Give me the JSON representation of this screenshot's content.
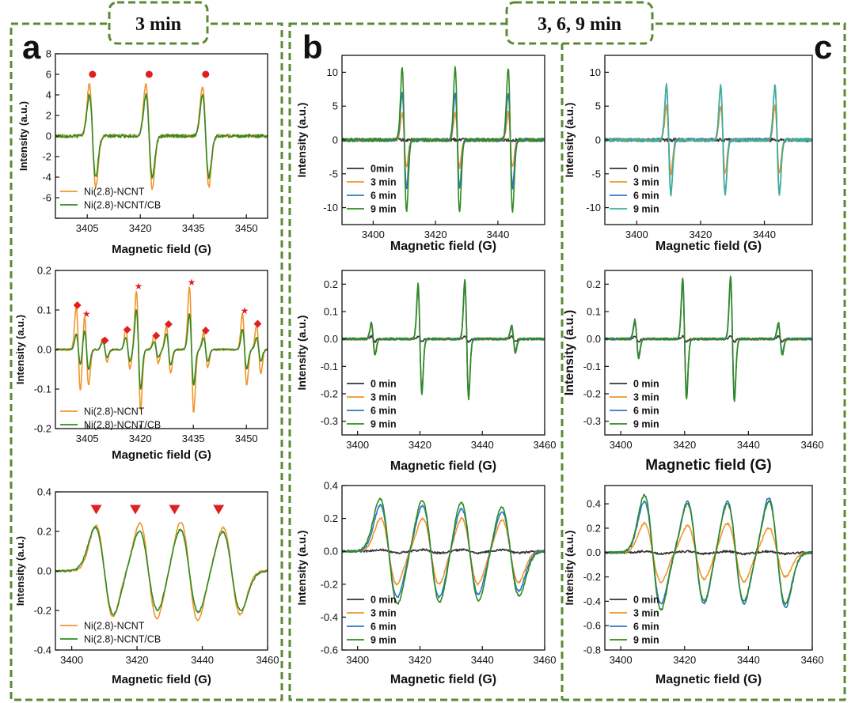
{
  "headers": {
    "left": "3 min",
    "right": "3, 6, 9 min"
  },
  "panel_letters": {
    "a": "a",
    "b": "b",
    "c": "c"
  },
  "colors": {
    "frame_green": "#5b8a35",
    "orange": "#f0962a",
    "green": "#2f8a22",
    "black": "#333333",
    "blue": "#2d78c7",
    "teal": "#3fb09a",
    "marker_red": "#e02020"
  },
  "chart_data": [
    {
      "id": "a1",
      "type": "line",
      "xlabel": "Magnetic field (G)",
      "ylabel": "Intensity (a.u.)",
      "xlim": [
        3396,
        3456
      ],
      "ylim": [
        -8,
        8
      ],
      "xticks": [
        3405,
        3420,
        3435,
        3450
      ],
      "yticks": [
        -8,
        -6,
        -4,
        -2,
        0,
        2,
        4,
        6,
        8
      ],
      "ytick_labels": [
        "",
        "-6",
        "-4",
        "-2",
        "0",
        "2",
        "4",
        "6",
        "8"
      ],
      "lines": [
        3406.5,
        3422.5,
        3438.5
      ],
      "peak_markers": {
        "shape": "circle",
        "y": 6,
        "x": [
          3406.5,
          3422.5,
          3438.5
        ]
      },
      "series": [
        {
          "name": "Ni(2.8)-NCNT",
          "color": "#f0962a",
          "amps": [
            5.0,
            5.1,
            4.9
          ],
          "width": 0.9,
          "noise": 0.02
        },
        {
          "name": "Ni(2.8)-NCNT/CB",
          "color": "#2f8a22",
          "amps": [
            4.0,
            4.0,
            4.0
          ],
          "width": 0.9,
          "noise": 0.02
        }
      ]
    },
    {
      "id": "a2",
      "type": "line",
      "xlabel": "Magnetic field (G)",
      "ylabel": "Intensity (a.u.)",
      "xlim": [
        3396,
        3456
      ],
      "ylim": [
        -0.2,
        0.2
      ],
      "xticks": [
        3405,
        3420,
        3435,
        3450
      ],
      "yticks": [
        -0.2,
        -0.1,
        0,
        0.1,
        0.2
      ],
      "ytick_labels": [
        "-0.2",
        "-0.1",
        "0.0",
        "0.1",
        "0.2"
      ],
      "lines": [
        3404.8,
        3419.5,
        3434.5,
        3449.5,
        3402.5,
        3410.0,
        3416.5,
        3424.5,
        3428.0,
        3438.5,
        3453.5
      ],
      "peak_markers_star": {
        "shape": "star",
        "points": [
          [
            3404.8,
            0.09
          ],
          [
            3419.5,
            0.16
          ],
          [
            3434.5,
            0.17
          ],
          [
            3449.5,
            0.098
          ]
        ]
      },
      "peak_markers_diamond": {
        "shape": "diamond",
        "points": [
          [
            3402.2,
            0.112
          ],
          [
            3410.0,
            0.023
          ],
          [
            3416.3,
            0.05
          ],
          [
            3424.5,
            0.035
          ],
          [
            3428.0,
            0.064
          ],
          [
            3438.5,
            0.048
          ],
          [
            3453.2,
            0.065
          ]
        ]
      },
      "series": [
        {
          "name": "Ni(2.8)-NCNT",
          "color": "#f0962a",
          "amps": [
            0.09,
            0.15,
            0.16,
            0.09,
            0.11,
            0.03,
            0.05,
            0.035,
            0.06,
            0.045,
            0.06
          ],
          "width": 0.6,
          "noise": 0.014
        },
        {
          "name": "Ni(2.8)-NCNT/CB",
          "color": "#2f8a22",
          "amps": [
            0.05,
            0.1,
            0.09,
            0.05,
            0.04,
            0.02,
            0.03,
            0.02,
            0.04,
            0.03,
            0.03
          ],
          "width": 0.6,
          "noise": 0.008
        }
      ]
    },
    {
      "id": "a3",
      "type": "line",
      "xlabel": "Magnetic field (G)",
      "ylabel": "Intensity (a.u.)",
      "xlim": [
        3395,
        3460
      ],
      "ylim": [
        -0.4,
        0.4
      ],
      "xticks": [
        3400,
        3420,
        3440,
        3460
      ],
      "yticks": [
        -0.4,
        -0.2,
        0,
        0.2,
        0.4
      ],
      "ytick_labels": [
        "-0.4",
        "-0.2",
        "0.0",
        "0.2",
        "0.4"
      ],
      "lines": [
        3410.0,
        3423.5,
        3436.0,
        3449.0
      ],
      "peak_markers": {
        "shape": "triangle",
        "y": 0.31,
        "x": [
          3407.5,
          3419.5,
          3431.5,
          3445.0
        ]
      },
      "series": [
        {
          "name": "Ni(2.8)-NCNT",
          "color": "#f0962a",
          "amps": [
            0.23,
            0.24,
            0.25,
            0.22
          ],
          "width": 2.6,
          "noise": 0.012
        },
        {
          "name": "Ni(2.8)-NCNT/CB",
          "color": "#2f8a22",
          "amps": [
            0.22,
            0.2,
            0.21,
            0.2
          ],
          "width": 2.8,
          "noise": 0.012
        }
      ]
    },
    {
      "id": "b1",
      "type": "line",
      "xlabel": "Magnetic field (G)",
      "ylabel": "Intensity (a.u.)",
      "xlim": [
        3390,
        3455
      ],
      "ylim": [
        -12.5,
        12.5
      ],
      "xticks": [
        3400,
        3420,
        3440
      ],
      "yticks": [
        -10,
        -5,
        0,
        5,
        10
      ],
      "ytick_labels": [
        "-10",
        "-5",
        "0",
        "5",
        "10"
      ],
      "lines": [
        3410.0,
        3427.0,
        3444.0
      ],
      "series": [
        {
          "name": "0min",
          "color": "#333333",
          "amps": [
            0.02,
            0.02,
            0.02
          ],
          "width": 0.7,
          "noise": 0.02
        },
        {
          "name": "3 min",
          "color": "#f0962a",
          "amps": [
            4.0,
            4.0,
            4.0
          ],
          "width": 0.7,
          "noise": 0.02
        },
        {
          "name": "6 min",
          "color": "#2d78c7",
          "amps": [
            7.0,
            7.0,
            7.0
          ],
          "width": 0.7,
          "noise": 0.02
        },
        {
          "name": "9 min",
          "color": "#2f8a22",
          "amps": [
            10.6,
            10.6,
            10.6
          ],
          "width": 0.7,
          "noise": 0.02
        }
      ]
    },
    {
      "id": "b2",
      "type": "line",
      "xlabel": "Magnetic field (G)",
      "ylabel": "Intensity (a.u.)",
      "xlim": [
        3395,
        3460
      ],
      "ylim": [
        -0.35,
        0.25
      ],
      "xticks": [
        3400,
        3420,
        3440,
        3460
      ],
      "yticks": [
        -0.3,
        -0.2,
        -0.1,
        0,
        0.1,
        0.2
      ],
      "ytick_labels": [
        "-0.3",
        "-0.2",
        "-0.1",
        "0.0",
        "0.1",
        "0.2"
      ],
      "lines": [
        3405.0,
        3420.0,
        3435.0,
        3450.0
      ],
      "series": [
        {
          "name": "0 min",
          "color": "#333333",
          "amps": [
            0.01,
            0.01,
            0.01,
            0.01
          ],
          "width": 0.6,
          "noise": 0.01
        },
        {
          "name": "3 min",
          "color": "#f0962a",
          "amps": [
            0.05,
            0.18,
            0.2,
            0.04
          ],
          "width": 0.6,
          "noise": 0.014
        },
        {
          "name": "6 min",
          "color": "#2d78c7",
          "amps": [
            0.06,
            0.19,
            0.21,
            0.045
          ],
          "width": 0.6,
          "noise": 0.014
        },
        {
          "name": "9 min",
          "color": "#2f8a22",
          "amps": [
            0.06,
            0.2,
            0.22,
            0.05
          ],
          "width": 0.6,
          "noise": 0.014
        }
      ]
    },
    {
      "id": "b3",
      "type": "line",
      "xlabel": "Magnetic field (G)",
      "ylabel": "Intensity (a.u.)",
      "xlim": [
        3395,
        3460
      ],
      "ylim": [
        -0.6,
        0.4
      ],
      "xticks": [
        3400,
        3420,
        3440,
        3460
      ],
      "yticks": [
        -0.6,
        -0.4,
        -0.2,
        0,
        0.2,
        0.4
      ],
      "ytick_labels": [
        "-0.6",
        "-0.4",
        "-0.2",
        "0.0",
        "0.2",
        "0.4"
      ],
      "lines": [
        3410.0,
        3423.5,
        3436.0,
        3449.0
      ],
      "series": [
        {
          "name": "0 min",
          "color": "#333333",
          "amps": [
            0.01,
            0.01,
            0.01,
            0.01
          ],
          "width": 2.6,
          "noise": 0.012
        },
        {
          "name": "3 min",
          "color": "#f0962a",
          "amps": [
            0.2,
            0.2,
            0.2,
            0.19
          ],
          "width": 2.6,
          "noise": 0.012
        },
        {
          "name": "6 min",
          "color": "#2d78c7",
          "amps": [
            0.28,
            0.28,
            0.26,
            0.24
          ],
          "width": 2.7,
          "noise": 0.012
        },
        {
          "name": "9 min",
          "color": "#2f8a22",
          "amps": [
            0.32,
            0.31,
            0.3,
            0.27
          ],
          "width": 2.8,
          "noise": 0.012
        }
      ]
    },
    {
      "id": "c1",
      "type": "line",
      "xlabel": "Magnetic field (G)",
      "ylabel": "Intensity (a.u.)",
      "xlim": [
        3390,
        3455
      ],
      "ylim": [
        -12.5,
        12.5
      ],
      "xticks": [
        3400,
        3420,
        3440
      ],
      "yticks": [
        -10,
        -5,
        0,
        5,
        10
      ],
      "ytick_labels": [
        "-10",
        "-5",
        "0",
        "5",
        "10"
      ],
      "lines": [
        3410.0,
        3427.0,
        3444.0
      ],
      "series": [
        {
          "name": "0 min",
          "color": "#333333",
          "amps": [
            0.02,
            0.02,
            0.02
          ],
          "width": 0.7,
          "noise": 0.02
        },
        {
          "name": "3 min",
          "color": "#f0962a",
          "amps": [
            5.0,
            5.0,
            5.0
          ],
          "width": 0.7,
          "noise": 0.02
        },
        {
          "name": "6 min",
          "color": "#2d78c7",
          "amps": [
            7.9,
            7.9,
            7.9
          ],
          "width": 0.7,
          "noise": 0.02
        },
        {
          "name": "9 min",
          "color": "#3fb09a",
          "amps": [
            8.1,
            8.1,
            8.1
          ],
          "width": 0.7,
          "noise": 0.02
        }
      ]
    },
    {
      "id": "c2",
      "type": "line",
      "xlabel": "Magnetic field (G)",
      "ylabel": "Intensity (a.u.)",
      "xlim": [
        3395,
        3460
      ],
      "ylim": [
        -0.35,
        0.25
      ],
      "xticks": [
        3400,
        3420,
        3440,
        3460
      ],
      "yticks": [
        -0.3,
        -0.2,
        -0.1,
        0,
        0.1,
        0.2
      ],
      "ytick_labels": [
        "-0.3",
        "-0.2",
        "-0.1",
        "0.0",
        "0.1",
        "0.2"
      ],
      "lines": [
        3405.0,
        3420.0,
        3435.0,
        3450.0
      ],
      "series": [
        {
          "name": "0 min",
          "color": "#333333",
          "amps": [
            0.01,
            0.01,
            0.01,
            0.01
          ],
          "width": 0.6,
          "noise": 0.01
        },
        {
          "name": "3 min",
          "color": "#f0962a",
          "amps": [
            0.07,
            0.2,
            0.21,
            0.05
          ],
          "width": 0.6,
          "noise": 0.014
        },
        {
          "name": "6 min",
          "color": "#2d78c7",
          "amps": [
            0.06,
            0.2,
            0.21,
            0.05
          ],
          "width": 0.6,
          "noise": 0.014
        },
        {
          "name": "9 min",
          "color": "#2f8a22",
          "amps": [
            0.07,
            0.22,
            0.23,
            0.06
          ],
          "width": 0.6,
          "noise": 0.014
        }
      ]
    },
    {
      "id": "c3",
      "type": "line",
      "xlabel": "Magnetic field (G)",
      "ylabel": "Intensity (a.u.)",
      "xlim": [
        3395,
        3460
      ],
      "ylim": [
        -0.8,
        0.55
      ],
      "xticks": [
        3400,
        3420,
        3440,
        3460
      ],
      "yticks": [
        -0.8,
        -0.6,
        -0.4,
        -0.2,
        0,
        0.2,
        0.4
      ],
      "ytick_labels": [
        "-0.8",
        "-0.6",
        "-0.4",
        "-0.2",
        "0.0",
        "0.2",
        "0.4"
      ],
      "lines": [
        3410.0,
        3423.5,
        3436.0,
        3449.0
      ],
      "series": [
        {
          "name": "0 min",
          "color": "#333333",
          "amps": [
            0.01,
            0.01,
            0.01,
            0.01
          ],
          "width": 2.6,
          "noise": 0.012
        },
        {
          "name": "3 min",
          "color": "#f0962a",
          "amps": [
            0.24,
            0.22,
            0.24,
            0.2
          ],
          "width": 2.6,
          "noise": 0.012
        },
        {
          "name": "6 min",
          "color": "#2d78c7",
          "amps": [
            0.42,
            0.42,
            0.42,
            0.45
          ],
          "width": 2.6,
          "noise": 0.012
        },
        {
          "name": "9 min",
          "color": "#2f8a22",
          "amps": [
            0.47,
            0.4,
            0.4,
            0.42
          ],
          "width": 2.6,
          "noise": 0.012
        }
      ]
    }
  ]
}
